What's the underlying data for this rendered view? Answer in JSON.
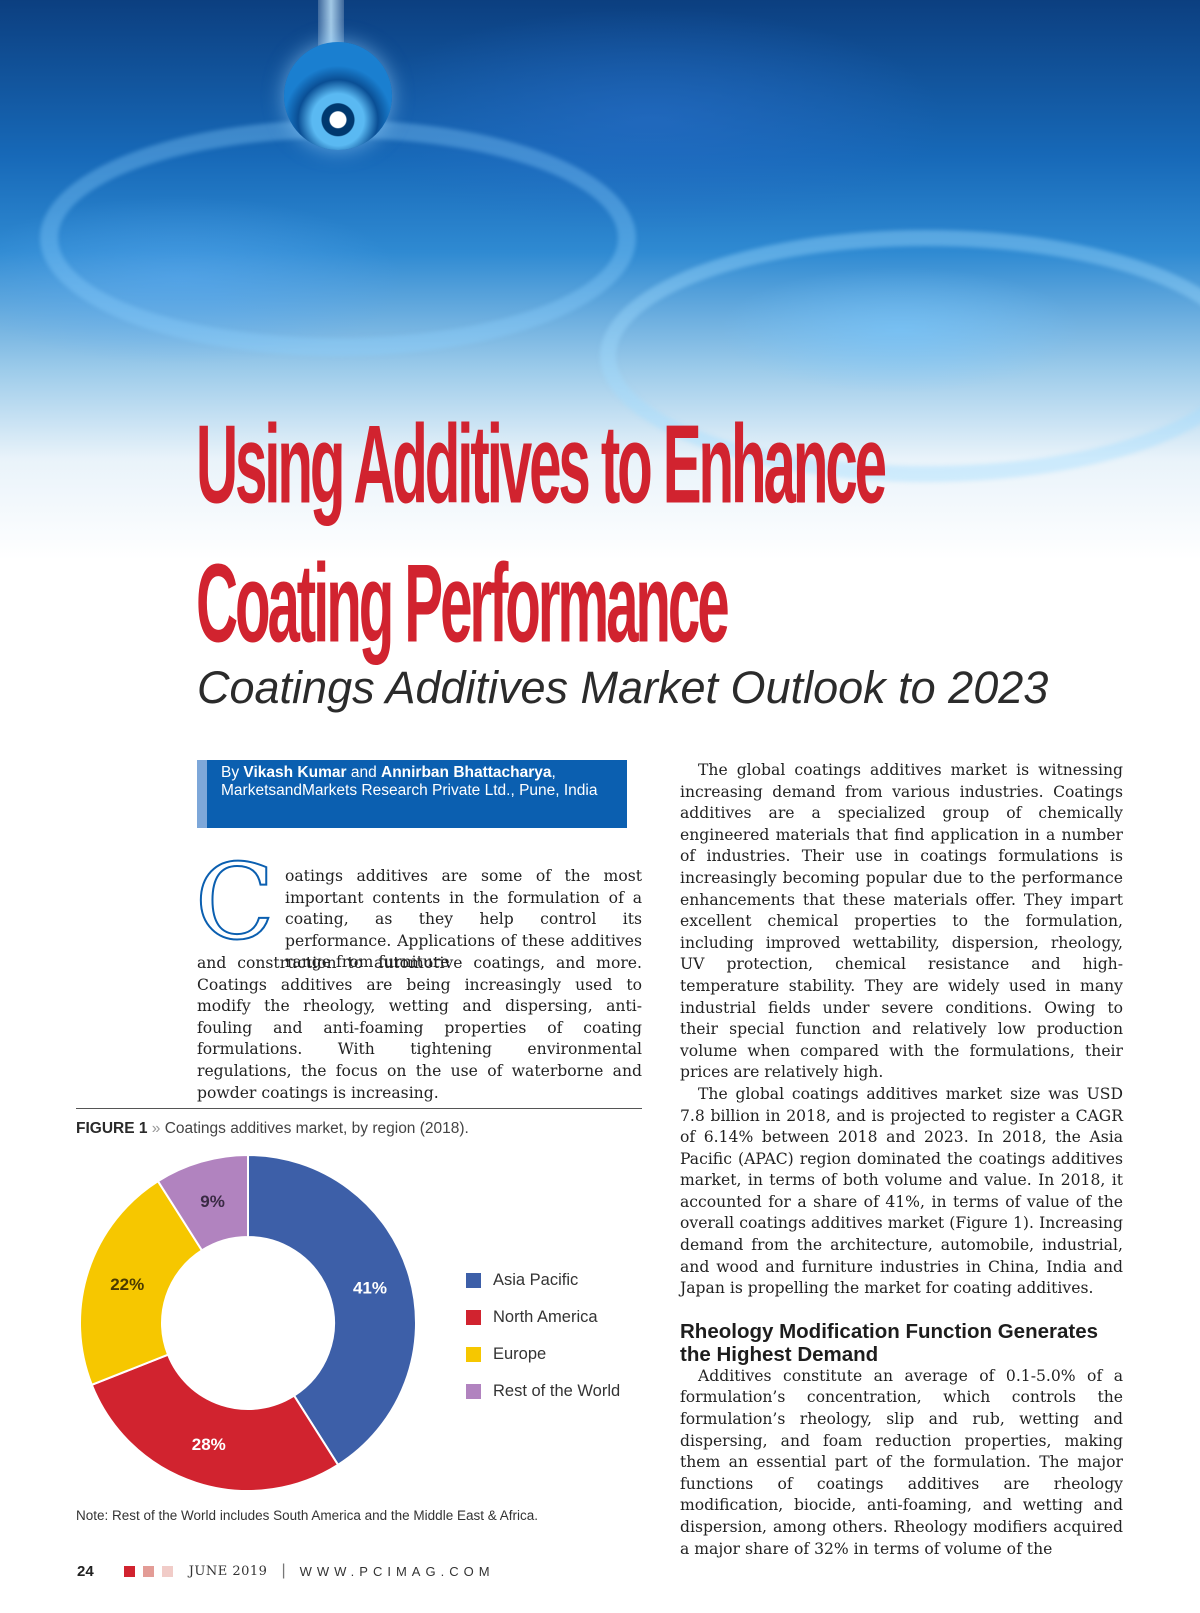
{
  "article": {
    "title_line1": "Using Additives to Enhance",
    "title_line2": "Coating Performance",
    "subtitle": "Coatings Additives Market Outlook to 2023",
    "byline": {
      "prefix": "By ",
      "author1": "Vikash Kumar",
      "and": " and ",
      "author2": "Annirban Bhattacharya",
      "suffix": ",",
      "affiliation": "MarketsandMarkets Research Private Ltd., Pune, India"
    },
    "dropcap": "C",
    "intro_first": "oatings additives are some of the most important contents in the formulation of a coating, as they help control its performance. Applications of these additives range from furniture",
    "intro_rest": "and construction to automotive coatings, and more. Coatings additives are being increasingly used to modify the rheology, wetting and dispersing, anti-fouling and anti-foaming properties of coating formulations. With tightening environmental regulations, the focus on the use of waterborne and powder coatings is increasing.",
    "right_p1": "The global coatings additives market is witnessing increasing demand from various industries. Coatings additives are a specialized group of chemically engineered materials that find application in a number of industries. Their use in coatings formulations is increasingly becoming popular due to the performance enhancements that these materials offer. They impart excellent chemical properties to the formulation, including improved wettability, dispersion, rheology, UV protection, chemical resistance and high-temperature stability. They are widely used in many industrial fields under severe conditions. Owing to their special function and relatively low production volume when compared with the formulations, their prices are relatively high.",
    "right_p2": "The global coatings additives market size was USD 7.8 billion in 2018, and is projected to register a CAGR of 6.14% between 2018 and 2023. In 2018, the Asia Pacific (APAC) region dominated the coatings additives market, in terms of both volume and value. In 2018, it accounted for a share of 41%, in terms of value of the overall coatings additives market (Figure 1). Increasing demand from the architecture, automobile, industrial, and wood and furniture industries in China, India and Japan is propelling the market for coating additives.",
    "section_head": "Rheology Modification Function Generates the Highest Demand",
    "section_body": "Additives constitute an average of 0.1-5.0% of a formulation’s concentration, which controls the formulation’s rheology, slip and rub, wetting and dispersing, and foam reduction properties, making them an essential part of the formulation. The major functions of coatings additives are rheology modification, biocide, anti-foaming, and wetting and dispersion, among others. Rheology modifiers acquired a major share of 32% in terms of volume of the"
  },
  "figure": {
    "label": "FIGURE 1",
    "separator": " » ",
    "caption": "Coatings additives market, by region (2018).",
    "note": "Note: Rest of the World includes South America and the Middle East & Africa."
  },
  "chart_data": {
    "type": "pie",
    "variant": "donut",
    "title": "",
    "categories": [
      "Asia Pacific",
      "North America",
      "Europe",
      "Rest of the World"
    ],
    "values": [
      41,
      28,
      22,
      9
    ],
    "labels": [
      "41%",
      "28%",
      "22%",
      "9%"
    ],
    "colors": [
      "#3d5fa8",
      "#d1232f",
      "#f6c700",
      "#b183bf"
    ],
    "legend": "right"
  },
  "footer": {
    "page_number": "24",
    "issue": "JUNE 2019",
    "divider": "|",
    "website": "WWW.PCIMAG.COM",
    "square_colors": [
      "#d1232f",
      "#e39c96",
      "#f1ccc8"
    ]
  }
}
